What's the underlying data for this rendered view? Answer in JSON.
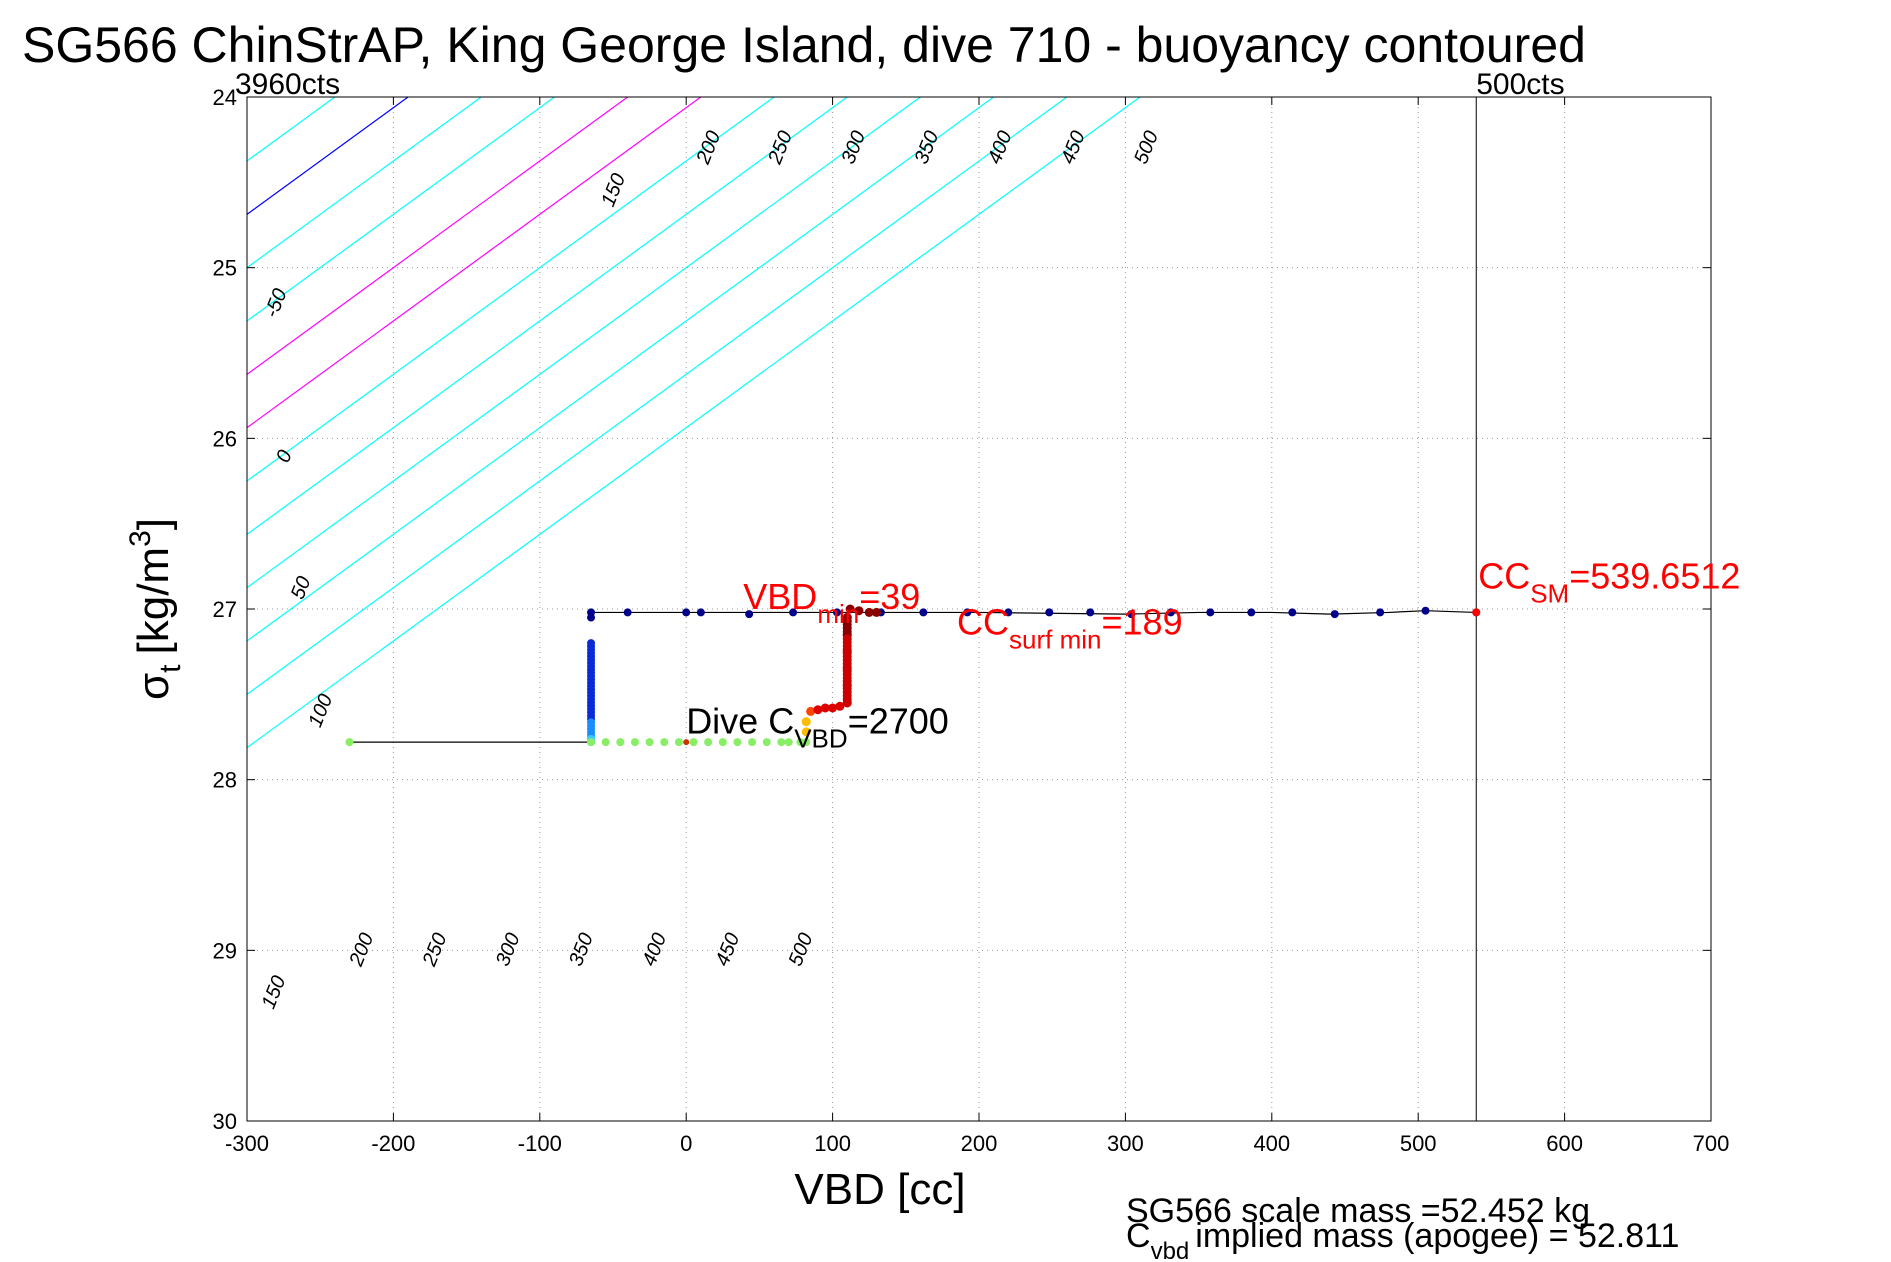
{
  "chart_data": {
    "type": "scatter",
    "title": "SG566 ChinStrAP, King George Island, dive 710 - buoyancy contoured",
    "xlabel": "VBD [cc]",
    "ylabel_symbol": "σ",
    "ylabel_sub": "t",
    "ylabel_unit": "[kg/m",
    "ylabel_sup": "3",
    "ylabel_close": "]",
    "xlim": [
      -300,
      700
    ],
    "ylim": [
      24,
      30
    ],
    "y_reversed": true,
    "grid": "dotted",
    "x_ticks": [
      -300,
      -200,
      -100,
      0,
      100,
      200,
      300,
      400,
      500,
      600,
      700
    ],
    "x_tick_labels": [
      "-300",
      "-200",
      "-100",
      "0",
      "100",
      "200",
      "300",
      "400",
      "500",
      "600",
      "700"
    ],
    "y_ticks": [
      24,
      25,
      26,
      27,
      28,
      29,
      30
    ],
    "y_tick_labels": [
      "24",
      "25",
      "26",
      "27",
      "28",
      "29",
      "30"
    ],
    "count_marks": [
      {
        "x": -300,
        "label": "3960cts"
      },
      {
        "x": 539.65,
        "label": "500cts"
      }
    ],
    "buoyancy_contours": {
      "slope_vbd_per_sigma": 160,
      "lines": [
        {
          "offset": -50,
          "color": "#00ffff",
          "label": "-50",
          "label_at": [
            -280,
            25.3
          ]
        },
        {
          "offset": 0,
          "color": "#0000ff",
          "label": "0",
          "label_at": [
            -272,
            26.15
          ]
        },
        {
          "offset": 50,
          "color": "#00ffff",
          "label": "50",
          "label_at": [
            -262,
            26.95
          ]
        },
        {
          "offset": 100,
          "color": "#00ffff",
          "label": "100",
          "label_at": [
            -250,
            27.7
          ]
        },
        {
          "offset": 150,
          "color": "#ff00ff",
          "label": "150",
          "label_at": [
            -50,
            24.65
          ]
        },
        {
          "offset": 200,
          "color": "#ff00ff",
          "label": "200",
          "label_at": [
            15,
            24.4
          ]
        },
        {
          "offset": 250,
          "color": "#00ffff",
          "label": "250",
          "label_at": [
            64,
            24.4
          ]
        },
        {
          "offset": 300,
          "color": "#00ffff",
          "label": "300",
          "label_at": [
            114,
            24.4
          ]
        },
        {
          "offset": 350,
          "color": "#00ffff",
          "label": "350",
          "label_at": [
            164,
            24.4
          ]
        },
        {
          "offset": 400,
          "color": "#00ffff",
          "label": "400",
          "label_at": [
            214,
            24.4
          ]
        },
        {
          "offset": 450,
          "color": "#00ffff",
          "label": "450",
          "label_at": [
            264,
            24.4
          ]
        },
        {
          "offset": 500,
          "color": "#00ffff",
          "label": "500",
          "label_at": [
            314,
            24.4
          ]
        }
      ],
      "lower_labels": [
        {
          "label": "150",
          "at": [
            -282,
            29.35
          ]
        },
        {
          "label": "200",
          "at": [
            -222,
            29.1
          ]
        },
        {
          "label": "250",
          "at": [
            -172,
            29.1
          ]
        },
        {
          "label": "300",
          "at": [
            -122,
            29.1
          ]
        },
        {
          "label": "350",
          "at": [
            -72,
            29.1
          ]
        },
        {
          "label": "400",
          "at": [
            -22,
            29.1
          ]
        },
        {
          "label": "450",
          "at": [
            28,
            29.1
          ]
        },
        {
          "label": "500",
          "at": [
            78,
            29.1
          ]
        }
      ]
    },
    "vertical_line_x": 539.65,
    "black_line": [
      [
        -65,
        27.02
      ],
      [
        0,
        27.02
      ],
      [
        100,
        27.02
      ],
      [
        200,
        27.02
      ],
      [
        300,
        27.03
      ],
      [
        350,
        27.02
      ],
      [
        400,
        27.02
      ],
      [
        440,
        27.03
      ],
      [
        480,
        27.02
      ],
      [
        505,
        27.01
      ],
      [
        539.65,
        27.02
      ]
    ],
    "dark_blue_points": [
      [
        -65,
        27.02
      ],
      [
        -40,
        27.02
      ],
      [
        0,
        27.02
      ],
      [
        10,
        27.02
      ],
      [
        43,
        27.03
      ],
      [
        73,
        27.02
      ],
      [
        103,
        27.02
      ],
      [
        133,
        27.02
      ],
      [
        162,
        27.02
      ],
      [
        192,
        27.02
      ],
      [
        220,
        27.02
      ],
      [
        248,
        27.02
      ],
      [
        276,
        27.02
      ],
      [
        304,
        27.03
      ],
      [
        331,
        27.02
      ],
      [
        358,
        27.02
      ],
      [
        386,
        27.02
      ],
      [
        414,
        27.02
      ],
      [
        443,
        27.03
      ],
      [
        474,
        27.02
      ],
      [
        505,
        27.01
      ],
      [
        539.65,
        27.02
      ]
    ],
    "descent_column": {
      "x": -65,
      "from": 27.2,
      "to": 27.78
    },
    "green_line": [
      [
        -230,
        27.78
      ],
      [
        -65,
        27.78
      ]
    ],
    "green_points": [
      [
        -230,
        27.78
      ],
      [
        -65,
        27.78
      ],
      [
        -55,
        27.78
      ],
      [
        -45,
        27.78
      ],
      [
        -35,
        27.78
      ],
      [
        -25,
        27.78
      ],
      [
        -15,
        27.78
      ],
      [
        -5,
        27.78
      ],
      [
        5,
        27.78
      ],
      [
        15,
        27.78
      ],
      [
        25,
        27.78
      ],
      [
        35,
        27.78
      ],
      [
        45,
        27.78
      ],
      [
        55,
        27.78
      ],
      [
        65,
        27.78
      ],
      [
        70,
        27.78
      ],
      [
        78,
        27.78
      ],
      [
        82,
        27.78
      ]
    ],
    "red_ascent": [
      [
        82,
        27.72
      ],
      [
        82,
        27.66
      ],
      [
        85,
        27.6
      ],
      [
        90,
        27.59
      ],
      [
        95,
        27.58
      ],
      [
        100,
        27.58
      ],
      [
        105,
        27.57
      ],
      [
        110,
        27.55
      ],
      [
        110,
        27.45
      ],
      [
        110,
        27.35
      ],
      [
        110,
        27.25
      ],
      [
        110,
        27.15
      ],
      [
        110,
        27.05
      ],
      [
        112,
        27.0
      ],
      [
        118,
        27.01
      ],
      [
        125,
        27.02
      ],
      [
        130,
        27.02
      ]
    ],
    "annotations": [
      {
        "text": "VBD",
        "sub": "min",
        "rest": "=39",
        "color": "#ff0000",
        "at": [
          39,
          27.0
        ]
      },
      {
        "text": "CC",
        "sub": "surf min",
        "rest": "=189",
        "color": "#ff0000",
        "at": [
          185,
          27.15
        ]
      },
      {
        "text": "CC",
        "sub": "SM",
        "rest": "=539.6512",
        "color": "#ff0000",
        "at": [
          541,
          26.88
        ]
      },
      {
        "text": "Dive C",
        "sub": "VBD",
        "rest": "=2700",
        "color": "#000000",
        "at": [
          0,
          27.73
        ]
      }
    ],
    "footer_lines": [
      "SG566 scale mass =52.452 kg",
      "implied mass (apogee) = 52.811"
    ],
    "footer_prefix": "C",
    "footer_prefix_sub": "vbd"
  }
}
